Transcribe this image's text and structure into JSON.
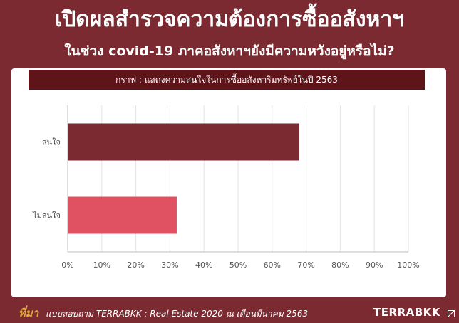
{
  "header": {
    "title": "เปิดผลสำรวจความต้องการซื้ออสังหาฯ",
    "subtitle": "ในช่วง covid-19 ภาคอสังหาฯยังมีความหวังอยู่หรือไม่?"
  },
  "chart_data": {
    "type": "bar",
    "orientation": "horizontal",
    "title": "กราฟ : แสดงความสนใจในการซื้ออสังหาริมทรัพย์ในปี 2563",
    "categories": [
      "สนใจ",
      "ไม่สนใจ"
    ],
    "values": [
      68,
      32
    ],
    "value_unit": "%",
    "xlim": [
      0,
      100
    ],
    "xticks": [
      "0%",
      "10%",
      "20%",
      "30%",
      "40%",
      "50%",
      "60%",
      "70%",
      "80%",
      "90%",
      "100%"
    ],
    "grid": true,
    "colors": [
      "#7a2a30",
      "#e05262"
    ]
  },
  "footer": {
    "source_lead": "ที่มา",
    "source_text": "แบบสอบถาม TERRABKK : Real Estate 2020 ณ เดือนมีนาคม 2563",
    "brand": "TERRABKK"
  }
}
